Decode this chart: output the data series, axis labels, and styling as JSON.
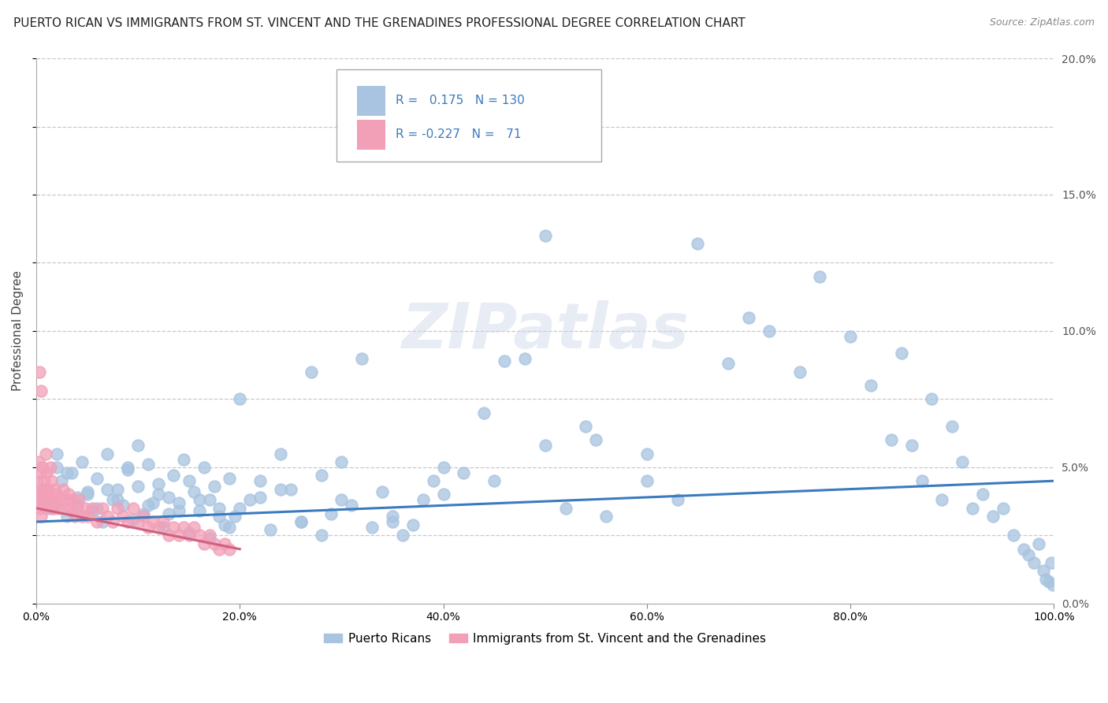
{
  "title": "PUERTO RICAN VS IMMIGRANTS FROM ST. VINCENT AND THE GRENADINES PROFESSIONAL DEGREE CORRELATION CHART",
  "source": "Source: ZipAtlas.com",
  "ylabel": "Professional Degree",
  "x_min": 0.0,
  "x_max": 100.0,
  "y_min": 0.0,
  "y_max": 20.0,
  "blue_R": 0.175,
  "blue_N": 130,
  "pink_R": -0.227,
  "pink_N": 71,
  "blue_color": "#a8c4e0",
  "pink_color": "#f2a0b8",
  "blue_line_color": "#3a7bbf",
  "pink_line_color": "#d06080",
  "watermark_text": "ZIPatlas",
  "legend_label_blue": "Puerto Ricans",
  "legend_label_pink": "Immigrants from St. Vincent and the Grenadines",
  "title_fontsize": 11,
  "source_fontsize": 9,
  "blue_scatter_x": [
    0.5,
    1.0,
    1.5,
    2.0,
    2.5,
    3.0,
    3.5,
    4.0,
    4.5,
    5.0,
    5.5,
    6.0,
    6.5,
    7.0,
    7.5,
    8.0,
    8.5,
    9.0,
    9.5,
    10.0,
    10.5,
    11.0,
    11.5,
    12.0,
    12.5,
    13.0,
    13.5,
    14.0,
    14.5,
    15.0,
    15.5,
    16.0,
    16.5,
    17.0,
    17.5,
    18.0,
    18.5,
    19.0,
    19.5,
    20.0,
    21.0,
    22.0,
    23.0,
    24.0,
    25.0,
    26.0,
    27.0,
    28.0,
    29.0,
    30.0,
    31.0,
    32.0,
    33.0,
    34.0,
    35.0,
    36.0,
    37.0,
    38.0,
    39.0,
    40.0,
    42.0,
    44.0,
    46.0,
    48.0,
    50.0,
    52.0,
    54.0,
    56.0,
    60.0,
    63.0,
    65.0,
    68.0,
    70.0,
    72.0,
    75.0,
    77.0,
    80.0,
    82.0,
    84.0,
    85.0,
    86.0,
    87.0,
    88.0,
    89.0,
    90.0,
    91.0,
    92.0,
    93.0,
    94.0,
    95.0,
    96.0,
    97.0,
    97.5,
    98.0,
    98.5,
    99.0,
    99.2,
    99.5,
    99.7,
    99.9,
    2.0,
    3.0,
    4.0,
    5.0,
    6.0,
    7.0,
    8.0,
    9.0,
    10.0,
    11.0,
    12.0,
    13.0,
    14.0,
    15.0,
    16.0,
    17.0,
    18.0,
    19.0,
    20.0,
    22.0,
    24.0,
    26.0,
    28.0,
    30.0,
    35.0,
    40.0,
    45.0,
    50.0,
    55.0,
    60.0
  ],
  "blue_scatter_y": [
    3.8,
    4.2,
    3.5,
    5.0,
    4.5,
    3.2,
    4.8,
    3.6,
    5.2,
    4.0,
    3.4,
    4.6,
    3.0,
    5.5,
    3.8,
    4.2,
    3.6,
    4.9,
    3.1,
    5.8,
    3.3,
    5.1,
    3.7,
    4.4,
    2.8,
    3.9,
    4.7,
    3.4,
    5.3,
    2.6,
    4.1,
    3.8,
    5.0,
    2.4,
    4.3,
    3.5,
    2.9,
    4.6,
    3.2,
    7.5,
    3.8,
    4.5,
    2.7,
    5.5,
    4.2,
    3.0,
    8.5,
    4.7,
    3.3,
    5.2,
    3.6,
    9.0,
    2.8,
    4.1,
    3.0,
    2.5,
    2.9,
    3.8,
    4.5,
    5.0,
    4.8,
    7.0,
    8.9,
    9.0,
    13.5,
    3.5,
    6.5,
    3.2,
    4.5,
    3.8,
    13.2,
    8.8,
    10.5,
    10.0,
    8.5,
    12.0,
    9.8,
    8.0,
    6.0,
    9.2,
    5.8,
    4.5,
    7.5,
    3.8,
    6.5,
    5.2,
    3.5,
    4.0,
    3.2,
    3.5,
    2.5,
    2.0,
    1.8,
    1.5,
    2.2,
    1.2,
    0.9,
    0.8,
    1.5,
    0.7,
    5.5,
    4.8,
    3.9,
    4.1,
    3.5,
    4.2,
    3.8,
    5.0,
    4.3,
    3.6,
    4.0,
    3.3,
    3.7,
    4.5,
    3.4,
    3.8,
    3.2,
    2.8,
    3.5,
    3.9,
    4.2,
    3.0,
    2.5,
    3.8,
    3.2,
    4.0,
    4.5,
    5.8,
    6.0,
    5.5
  ],
  "pink_scatter_x": [
    0.1,
    0.15,
    0.2,
    0.25,
    0.3,
    0.35,
    0.4,
    0.45,
    0.5,
    0.55,
    0.6,
    0.65,
    0.7,
    0.75,
    0.8,
    0.85,
    0.9,
    0.95,
    1.0,
    1.1,
    1.2,
    1.3,
    1.4,
    1.5,
    1.6,
    1.7,
    1.8,
    1.9,
    2.0,
    2.2,
    2.4,
    2.6,
    2.8,
    3.0,
    3.2,
    3.4,
    3.6,
    3.8,
    4.0,
    4.2,
    4.5,
    4.8,
    5.0,
    5.5,
    6.0,
    6.5,
    7.0,
    7.5,
    8.0,
    8.5,
    9.0,
    9.5,
    10.0,
    10.5,
    11.0,
    11.5,
    12.0,
    12.5,
    13.0,
    13.5,
    14.0,
    14.5,
    15.0,
    15.5,
    16.0,
    16.5,
    17.0,
    17.5,
    18.0,
    18.5,
    19.0
  ],
  "pink_scatter_y": [
    4.5,
    3.8,
    5.2,
    4.0,
    8.5,
    3.5,
    4.8,
    3.2,
    7.8,
    4.2,
    3.6,
    5.0,
    3.9,
    4.5,
    4.2,
    3.8,
    5.5,
    4.0,
    4.8,
    3.5,
    4.2,
    3.8,
    5.0,
    4.5,
    3.8,
    3.5,
    4.2,
    3.8,
    4.0,
    3.5,
    3.8,
    4.2,
    3.5,
    3.8,
    4.0,
    3.5,
    3.8,
    3.2,
    3.5,
    3.8,
    3.2,
    3.5,
    3.2,
    3.5,
    3.0,
    3.5,
    3.2,
    3.0,
    3.5,
    3.2,
    3.0,
    3.5,
    3.0,
    3.2,
    2.8,
    3.0,
    2.8,
    3.0,
    2.5,
    2.8,
    2.5,
    2.8,
    2.5,
    2.8,
    2.5,
    2.2,
    2.5,
    2.2,
    2.0,
    2.2,
    2.0
  ]
}
